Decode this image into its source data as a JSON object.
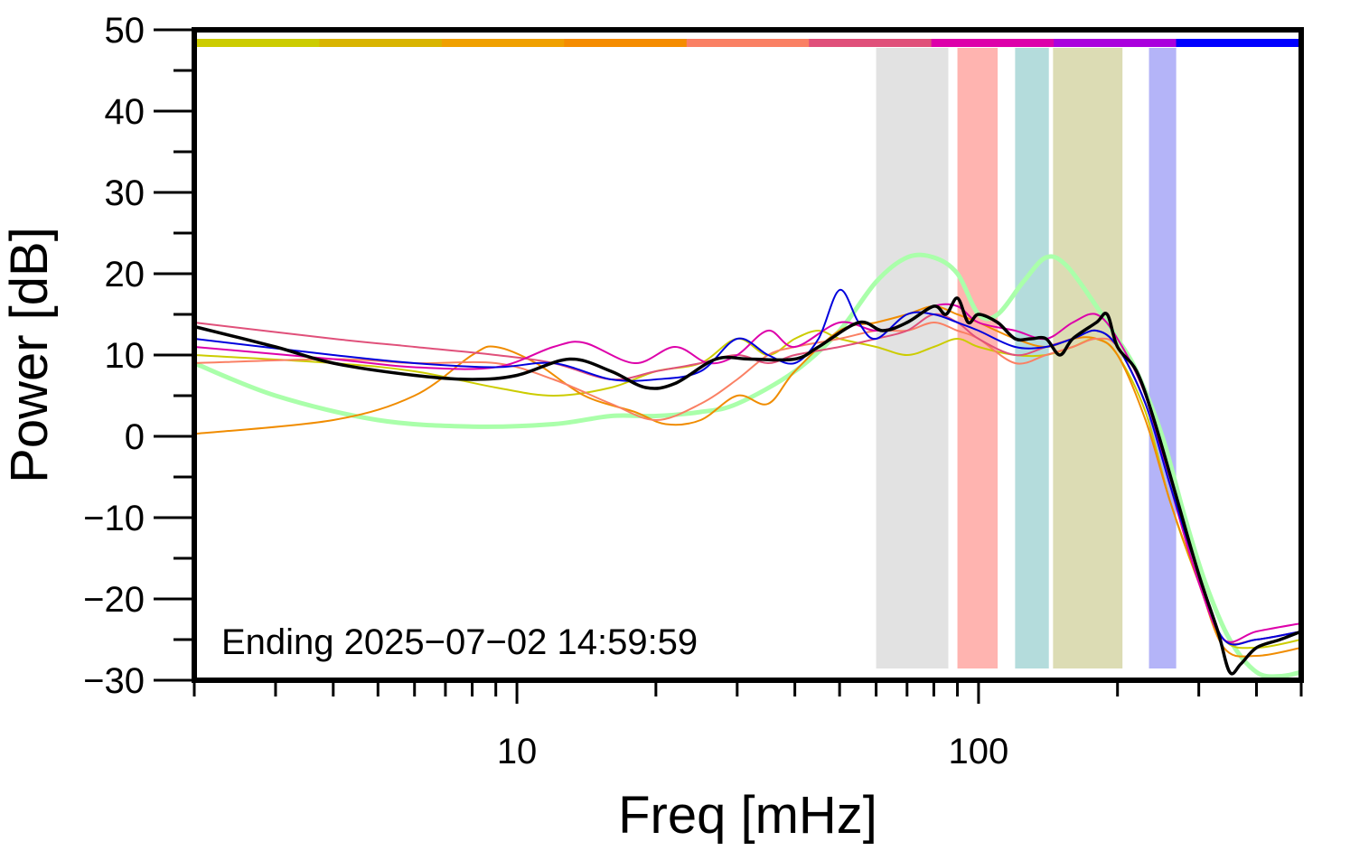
{
  "chart_data": {
    "type": "line",
    "title": "",
    "xlabel": "Freq [mHz]",
    "ylabel": "Power [dB]",
    "x_scale": "log",
    "xlim": [
      2,
      500
    ],
    "ylim": [
      -30,
      50
    ],
    "grid": false,
    "x_tick_labels": [
      "10",
      "100"
    ],
    "y_tick_labels": [
      "50",
      "40",
      "30",
      "20",
      "10",
      "0",
      "−10",
      "−20",
      "−30"
    ],
    "annotation": "Ending 2025−07−02 14:59:59",
    "top_color_bar": [
      "#cccc00",
      "#d9b400",
      "#f0a000",
      "#f58c00",
      "#fa8064",
      "#e0507a",
      "#dd00aa",
      "#aa00dd",
      "#0000ff"
    ],
    "bands": [
      {
        "from": 60,
        "to": 86,
        "color": "#e2e2e2"
      },
      {
        "from": 90,
        "to": 110,
        "color": "#ffb4b0"
      },
      {
        "from": 120,
        "to": 142,
        "color": "#b4dcdc"
      },
      {
        "from": 145,
        "to": 205,
        "color": "#dcdcb4"
      },
      {
        "from": 234,
        "to": 268,
        "color": "#b4b4f8"
      }
    ],
    "series": [
      {
        "color": "#aaffaa",
        "width": 5,
        "points": [
          [
            2,
            9
          ],
          [
            3,
            5
          ],
          [
            5,
            2
          ],
          [
            8,
            1.2
          ],
          [
            12,
            1.5
          ],
          [
            16,
            2.5
          ],
          [
            20,
            2.5
          ],
          [
            25,
            3
          ],
          [
            30,
            4
          ],
          [
            40,
            8
          ],
          [
            50,
            13
          ],
          [
            60,
            19
          ],
          [
            70,
            22
          ],
          [
            80,
            22
          ],
          [
            90,
            20
          ],
          [
            100,
            15
          ],
          [
            110,
            15
          ],
          [
            125,
            19
          ],
          [
            140,
            22
          ],
          [
            155,
            21
          ],
          [
            180,
            16
          ],
          [
            200,
            12
          ],
          [
            220,
            8
          ],
          [
            250,
            0
          ],
          [
            280,
            -10
          ],
          [
            310,
            -18
          ],
          [
            350,
            -25
          ],
          [
            400,
            -29
          ],
          [
            450,
            -29.5
          ],
          [
            500,
            -29
          ]
        ]
      },
      {
        "color": "#cccc00",
        "width": 2,
        "points": [
          [
            2,
            10
          ],
          [
            4,
            9
          ],
          [
            6,
            8
          ],
          [
            9,
            6
          ],
          [
            12,
            5
          ],
          [
            16,
            6
          ],
          [
            20,
            8
          ],
          [
            25,
            9
          ],
          [
            30,
            12
          ],
          [
            35,
            10
          ],
          [
            40,
            12
          ],
          [
            45,
            13
          ],
          [
            50,
            12
          ],
          [
            60,
            11
          ],
          [
            70,
            10
          ],
          [
            80,
            11
          ],
          [
            90,
            12
          ],
          [
            100,
            11
          ],
          [
            120,
            10
          ],
          [
            140,
            10
          ],
          [
            160,
            11
          ],
          [
            180,
            12
          ],
          [
            200,
            10
          ],
          [
            230,
            3
          ],
          [
            260,
            -8
          ],
          [
            300,
            -18
          ],
          [
            340,
            -25
          ],
          [
            400,
            -26
          ],
          [
            500,
            -25
          ]
        ]
      },
      {
        "color": "#f08c00",
        "width": 2,
        "points": [
          [
            2,
            0.3
          ],
          [
            4,
            2
          ],
          [
            6,
            5
          ],
          [
            8,
            10
          ],
          [
            9,
            11
          ],
          [
            11,
            9
          ],
          [
            14,
            5
          ],
          [
            18,
            3
          ],
          [
            21,
            1.5
          ],
          [
            25,
            2
          ],
          [
            30,
            5
          ],
          [
            35,
            4
          ],
          [
            40,
            8
          ],
          [
            50,
            13
          ],
          [
            60,
            14
          ],
          [
            70,
            15
          ],
          [
            80,
            16
          ],
          [
            90,
            15
          ],
          [
            100,
            14
          ],
          [
            120,
            12
          ],
          [
            140,
            11
          ],
          [
            160,
            12
          ],
          [
            180,
            12
          ],
          [
            200,
            10
          ],
          [
            230,
            2
          ],
          [
            260,
            -8
          ],
          [
            300,
            -18
          ],
          [
            340,
            -26
          ],
          [
            400,
            -27
          ],
          [
            500,
            -26
          ]
        ]
      },
      {
        "color": "#fa8064",
        "width": 2,
        "points": [
          [
            2,
            9
          ],
          [
            4,
            9.5
          ],
          [
            6,
            9
          ],
          [
            9,
            9
          ],
          [
            12,
            7
          ],
          [
            16,
            4
          ],
          [
            20,
            2
          ],
          [
            25,
            4
          ],
          [
            30,
            7
          ],
          [
            35,
            10
          ],
          [
            40,
            11
          ],
          [
            50,
            12
          ],
          [
            60,
            13
          ],
          [
            70,
            13
          ],
          [
            80,
            14
          ],
          [
            90,
            13
          ],
          [
            100,
            12
          ],
          [
            120,
            9
          ],
          [
            140,
            10
          ],
          [
            160,
            11
          ],
          [
            180,
            12
          ],
          [
            200,
            11
          ],
          [
            230,
            4
          ],
          [
            260,
            -6
          ],
          [
            300,
            -18
          ],
          [
            340,
            -25
          ],
          [
            400,
            -25
          ],
          [
            500,
            -24
          ]
        ]
      },
      {
        "color": "#e0507a",
        "width": 2,
        "points": [
          [
            2,
            14
          ],
          [
            4,
            12
          ],
          [
            6,
            11
          ],
          [
            9,
            10
          ],
          [
            12,
            9
          ],
          [
            16,
            7
          ],
          [
            20,
            8
          ],
          [
            25,
            9
          ],
          [
            30,
            10
          ],
          [
            35,
            9
          ],
          [
            40,
            10
          ],
          [
            50,
            11
          ],
          [
            60,
            12
          ],
          [
            70,
            13
          ],
          [
            80,
            15
          ],
          [
            90,
            14
          ],
          [
            100,
            12
          ],
          [
            120,
            10
          ],
          [
            140,
            11
          ],
          [
            160,
            12
          ],
          [
            180,
            13
          ],
          [
            200,
            11
          ],
          [
            230,
            4
          ],
          [
            260,
            -6
          ],
          [
            300,
            -18
          ],
          [
            340,
            -25
          ],
          [
            400,
            -25
          ],
          [
            500,
            -24
          ]
        ]
      },
      {
        "color": "#dd00aa",
        "width": 2,
        "points": [
          [
            2,
            11
          ],
          [
            4,
            9.5
          ],
          [
            6,
            8.5
          ],
          [
            9,
            8.5
          ],
          [
            12,
            11
          ],
          [
            14,
            11.5
          ],
          [
            18,
            9
          ],
          [
            22,
            11
          ],
          [
            26,
            9
          ],
          [
            30,
            10
          ],
          [
            35,
            13
          ],
          [
            40,
            11
          ],
          [
            50,
            14
          ],
          [
            60,
            13
          ],
          [
            70,
            14
          ],
          [
            80,
            16
          ],
          [
            90,
            16
          ],
          [
            100,
            14
          ],
          [
            120,
            13
          ],
          [
            140,
            12
          ],
          [
            160,
            14
          ],
          [
            180,
            15
          ],
          [
            200,
            12
          ],
          [
            230,
            5
          ],
          [
            260,
            -6
          ],
          [
            300,
            -18
          ],
          [
            340,
            -25
          ],
          [
            400,
            -24
          ],
          [
            500,
            -23
          ]
        ]
      },
      {
        "color": "#0000dd",
        "width": 2,
        "points": [
          [
            2,
            12
          ],
          [
            4,
            10
          ],
          [
            6,
            9
          ],
          [
            9,
            8.5
          ],
          [
            12,
            9
          ],
          [
            16,
            7
          ],
          [
            20,
            7
          ],
          [
            25,
            8
          ],
          [
            30,
            12
          ],
          [
            35,
            10
          ],
          [
            40,
            9
          ],
          [
            45,
            12
          ],
          [
            50,
            18
          ],
          [
            55,
            14
          ],
          [
            60,
            12
          ],
          [
            70,
            15
          ],
          [
            80,
            15
          ],
          [
            90,
            14
          ],
          [
            100,
            13
          ],
          [
            120,
            11
          ],
          [
            140,
            11
          ],
          [
            160,
            12
          ],
          [
            180,
            13
          ],
          [
            200,
            11
          ],
          [
            230,
            4
          ],
          [
            260,
            -6
          ],
          [
            300,
            -17
          ],
          [
            340,
            -25
          ],
          [
            400,
            -25
          ],
          [
            500,
            -24
          ]
        ]
      },
      {
        "color": "#000000",
        "width": 3.5,
        "points": [
          [
            2,
            13.5
          ],
          [
            3,
            11
          ],
          [
            4,
            9
          ],
          [
            6,
            7.5
          ],
          [
            8,
            7
          ],
          [
            10,
            7.5
          ],
          [
            13,
            9.5
          ],
          [
            16,
            8
          ],
          [
            19,
            6
          ],
          [
            22,
            6.5
          ],
          [
            27,
            9.5
          ],
          [
            32,
            9.5
          ],
          [
            40,
            9.5
          ],
          [
            45,
            11
          ],
          [
            55,
            14
          ],
          [
            62,
            13
          ],
          [
            70,
            14
          ],
          [
            80,
            16
          ],
          [
            85,
            15
          ],
          [
            90,
            17
          ],
          [
            95,
            14
          ],
          [
            100,
            15
          ],
          [
            110,
            14
          ],
          [
            120,
            12
          ],
          [
            130,
            12
          ],
          [
            140,
            12
          ],
          [
            150,
            10
          ],
          [
            160,
            12
          ],
          [
            180,
            14
          ],
          [
            190,
            15
          ],
          [
            200,
            11
          ],
          [
            220,
            8
          ],
          [
            240,
            2
          ],
          [
            270,
            -8
          ],
          [
            300,
            -17
          ],
          [
            330,
            -24
          ],
          [
            350,
            -29
          ],
          [
            370,
            -28
          ],
          [
            400,
            -26
          ],
          [
            450,
            -25
          ],
          [
            500,
            -24
          ]
        ]
      }
    ]
  }
}
